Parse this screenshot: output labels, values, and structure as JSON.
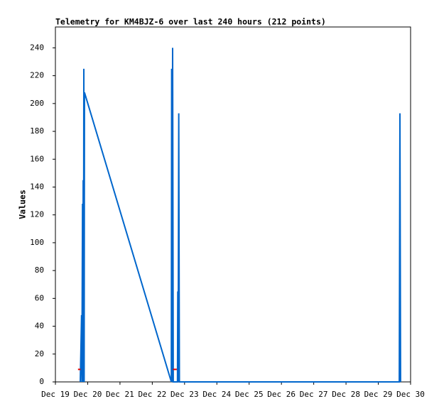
{
  "chart_data": {
    "type": "line",
    "title": "Telemetry for KM4BJZ-6 over last 240 hours (212 points)",
    "y_label": "Values",
    "series": [
      {
        "color": "#0066cc",
        "x": [
          19.77,
          19.81,
          19.82,
          19.84,
          19.85,
          19.86,
          19.87,
          19.88,
          19.89,
          19.9,
          22.59,
          22.6,
          22.61,
          22.63,
          22.65,
          22.78,
          22.79,
          22.8,
          22.82,
          22.84,
          29.65,
          29.67,
          29.69
        ],
        "values": [
          0,
          48,
          0,
          128,
          0,
          145,
          0,
          225,
          0,
          208,
          0,
          225,
          0,
          240,
          0,
          0,
          65,
          0,
          193,
          0,
          0,
          193,
          0
        ]
      },
      {
        "color": "#dd0000",
        "x": [
          19.7,
          19.78,
          19.79,
          22.64,
          22.76
        ],
        "values": [
          9,
          9,
          null,
          9,
          9
        ]
      }
    ],
    "xlim": [
      19,
      30
    ],
    "xticks": [
      {
        "value": 19,
        "label": "Dec 19"
      },
      {
        "value": 20,
        "label": "Dec 20"
      },
      {
        "value": 21,
        "label": "Dec 21"
      },
      {
        "value": 22,
        "label": "Dec 22"
      },
      {
        "value": 23,
        "label": "Dec 23"
      },
      {
        "value": 24,
        "label": "Dec 24"
      },
      {
        "value": 25,
        "label": "Dec 25"
      },
      {
        "value": 26,
        "label": "Dec 26"
      },
      {
        "value": 27,
        "label": "Dec 27"
      },
      {
        "value": 28,
        "label": "Dec 28"
      },
      {
        "value": 29,
        "label": "Dec 29"
      },
      {
        "value": 30,
        "label": "Dec 30"
      }
    ],
    "ylim": [
      0,
      255
    ],
    "yticks": [
      0,
      20,
      40,
      60,
      80,
      100,
      120,
      140,
      160,
      180,
      200,
      220,
      240
    ],
    "grid": false
  }
}
